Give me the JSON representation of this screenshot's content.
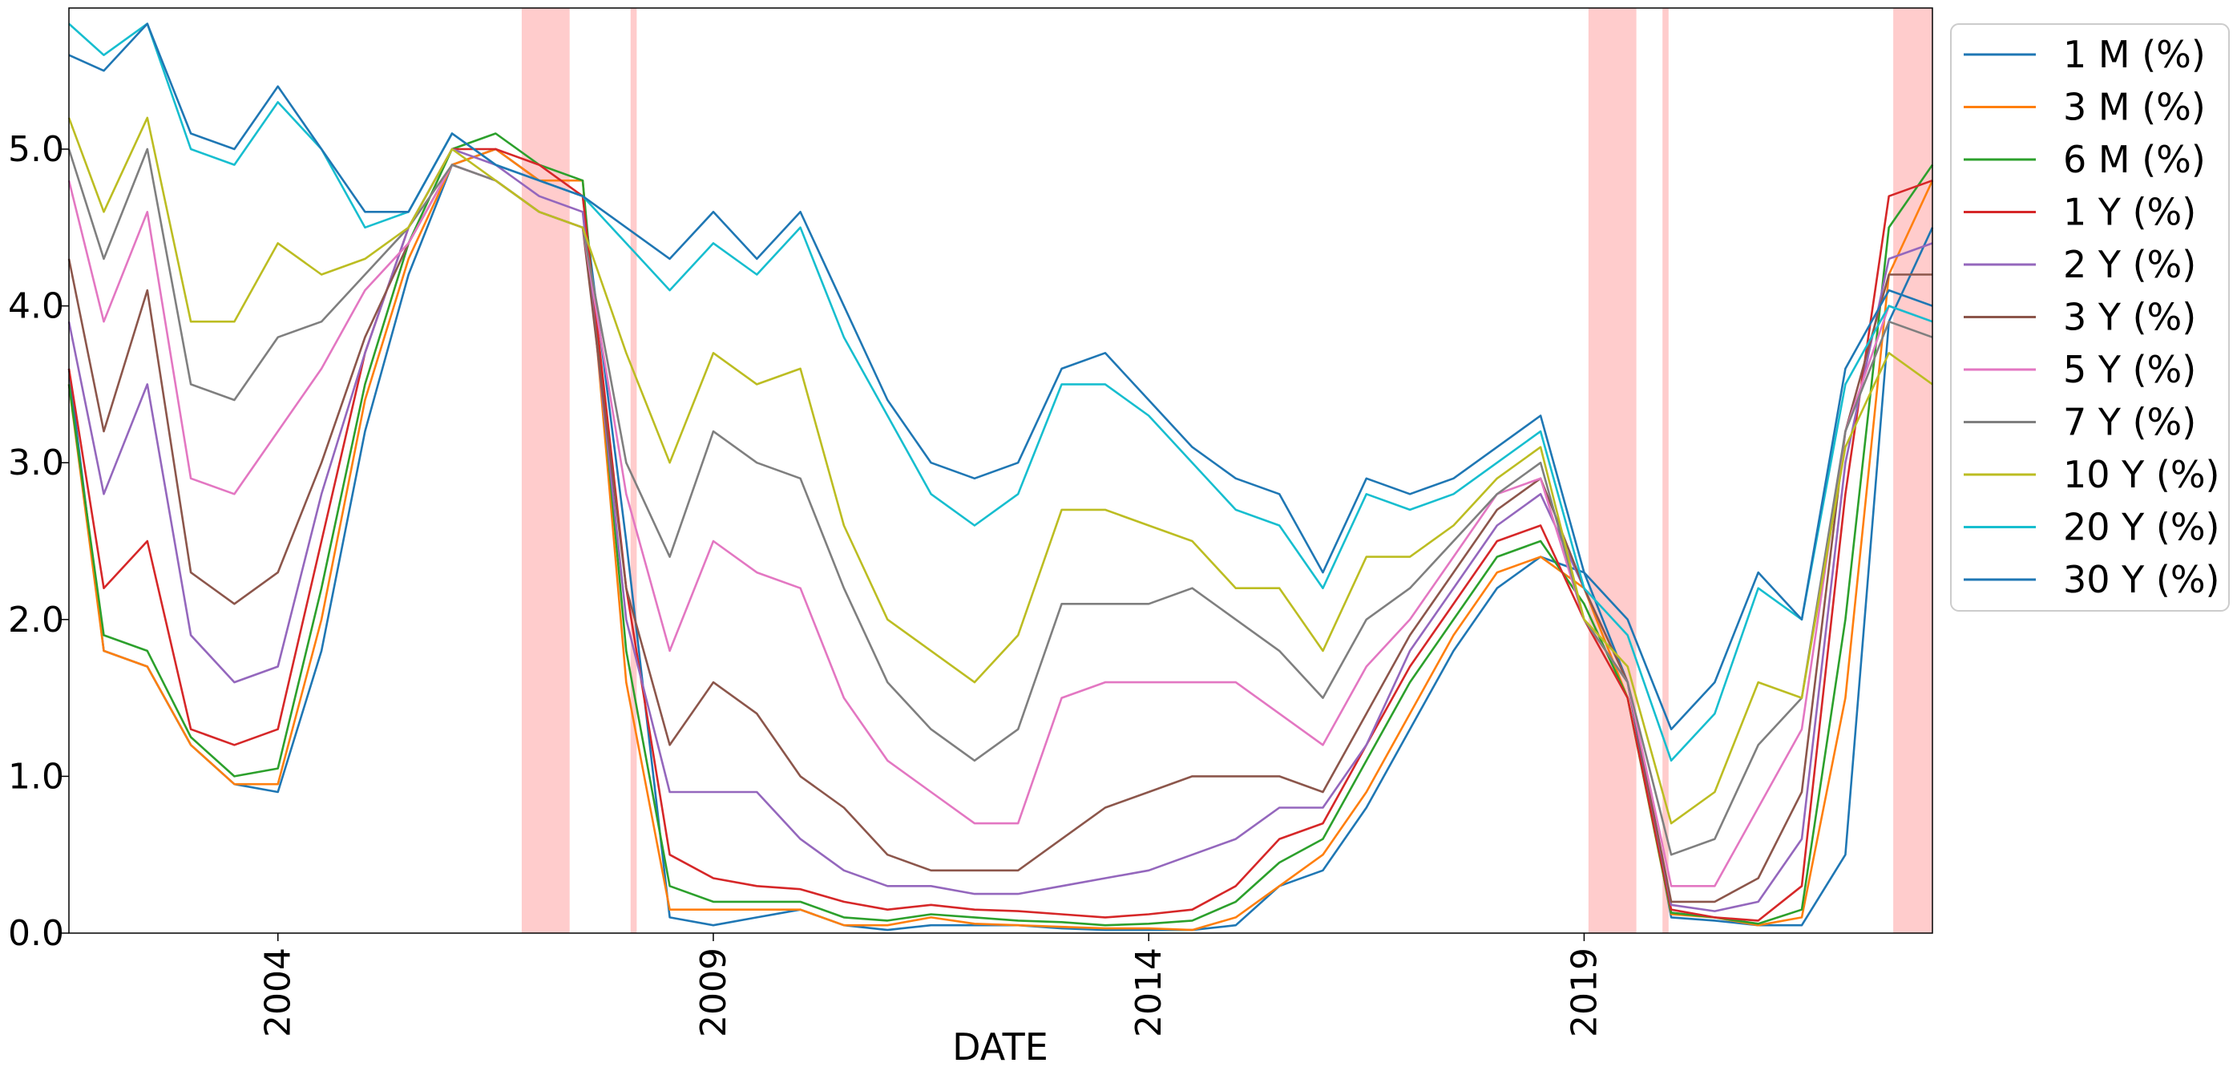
{
  "chart_data": {
    "type": "line",
    "title": "",
    "xlabel": "DATE",
    "ylabel": "",
    "xlim": [
      2001.6,
      2023.0
    ],
    "ylim": [
      0,
      5.9
    ],
    "x_ticks": [
      2004,
      2009,
      2014,
      2019
    ],
    "x_tick_labels": [
      "2004",
      "2009",
      "2014",
      "2019"
    ],
    "y_ticks": [
      0,
      1,
      2,
      3,
      4,
      5
    ],
    "y_tick_labels": [
      "0.0",
      "1.0",
      "2.0",
      "3.0",
      "4.0",
      "5.0"
    ],
    "grid": false,
    "legend_position": "upper right, outside plot",
    "shaded_periods": [
      [
        2006.8,
        2007.35
      ],
      [
        2008.05,
        2008.12
      ],
      [
        2019.05,
        2019.6
      ],
      [
        2019.9,
        2019.97
      ],
      [
        2022.55,
        2023.0
      ]
    ],
    "shade_color": "#ffcccc",
    "x": [
      2001.6,
      2002.0,
      2002.5,
      2003.0,
      2003.5,
      2004.0,
      2004.5,
      2005.0,
      2005.5,
      2006.0,
      2006.5,
      2007.0,
      2007.5,
      2008.0,
      2008.5,
      2009.0,
      2009.5,
      2010.0,
      2010.5,
      2011.0,
      2011.5,
      2012.0,
      2012.5,
      2013.0,
      2013.5,
      2014.0,
      2014.5,
      2015.0,
      2015.5,
      2016.0,
      2016.5,
      2017.0,
      2017.5,
      2018.0,
      2018.5,
      2019.0,
      2019.5,
      2020.0,
      2020.5,
      2021.0,
      2021.5,
      2022.0,
      2022.5,
      2023.0
    ],
    "series": [
      {
        "name": "1 M (%)",
        "color": "#1f77b4",
        "values": [
          3.6,
          1.8,
          1.7,
          1.2,
          0.95,
          0.9,
          1.8,
          3.2,
          4.2,
          4.9,
          5.0,
          4.8,
          4.7,
          2.5,
          0.1,
          0.05,
          0.1,
          0.15,
          0.05,
          0.02,
          0.05,
          0.05,
          0.05,
          0.03,
          0.02,
          0.02,
          0.02,
          0.05,
          0.3,
          0.4,
          0.8,
          1.3,
          1.8,
          2.2,
          2.4,
          2.3,
          1.6,
          0.1,
          0.08,
          0.05,
          0.05,
          0.5,
          3.9,
          4.5
        ]
      },
      {
        "name": "3 M (%)",
        "color": "#ff7f0e",
        "values": [
          3.5,
          1.8,
          1.7,
          1.2,
          0.95,
          0.95,
          2.0,
          3.4,
          4.3,
          4.9,
          5.0,
          4.8,
          4.8,
          1.6,
          0.15,
          0.15,
          0.15,
          0.15,
          0.05,
          0.05,
          0.1,
          0.06,
          0.05,
          0.04,
          0.03,
          0.03,
          0.02,
          0.1,
          0.3,
          0.5,
          0.9,
          1.4,
          1.9,
          2.3,
          2.4,
          2.2,
          1.5,
          0.12,
          0.1,
          0.05,
          0.1,
          1.5,
          4.2,
          4.8
        ]
      },
      {
        "name": "6 M (%)",
        "color": "#2ca02c",
        "values": [
          3.5,
          1.9,
          1.8,
          1.25,
          1.0,
          1.05,
          2.2,
          3.5,
          4.4,
          5.0,
          5.1,
          4.9,
          4.8,
          1.8,
          0.3,
          0.2,
          0.2,
          0.2,
          0.1,
          0.08,
          0.12,
          0.1,
          0.08,
          0.07,
          0.05,
          0.06,
          0.08,
          0.2,
          0.45,
          0.6,
          1.1,
          1.6,
          2.0,
          2.4,
          2.5,
          2.1,
          1.5,
          0.13,
          0.1,
          0.06,
          0.15,
          2.0,
          4.5,
          4.9
        ]
      },
      {
        "name": "1 Y (%)",
        "color": "#d62728",
        "values": [
          3.6,
          2.2,
          2.5,
          1.3,
          1.2,
          1.3,
          2.5,
          3.7,
          4.5,
          5.0,
          5.0,
          4.9,
          4.7,
          2.2,
          0.5,
          0.35,
          0.3,
          0.28,
          0.2,
          0.15,
          0.18,
          0.15,
          0.14,
          0.12,
          0.1,
          0.12,
          0.15,
          0.3,
          0.6,
          0.7,
          1.2,
          1.7,
          2.1,
          2.5,
          2.6,
          2.0,
          1.5,
          0.15,
          0.1,
          0.08,
          0.3,
          2.8,
          4.7,
          4.8
        ]
      },
      {
        "name": "2 Y (%)",
        "color": "#9467bd",
        "values": [
          3.9,
          2.8,
          3.5,
          1.9,
          1.6,
          1.7,
          2.8,
          3.7,
          4.5,
          5.0,
          4.9,
          4.7,
          4.6,
          2.0,
          0.9,
          0.9,
          0.9,
          0.6,
          0.4,
          0.3,
          0.3,
          0.25,
          0.25,
          0.3,
          0.35,
          0.4,
          0.5,
          0.6,
          0.8,
          0.8,
          1.2,
          1.8,
          2.2,
          2.6,
          2.8,
          2.2,
          1.6,
          0.18,
          0.14,
          0.2,
          0.6,
          3.0,
          4.3,
          4.4
        ]
      },
      {
        "name": "3 Y (%)",
        "color": "#8c564b",
        "values": [
          4.3,
          3.2,
          4.1,
          2.3,
          2.1,
          2.3,
          3.0,
          3.8,
          4.4,
          4.9,
          4.8,
          4.6,
          4.5,
          2.2,
          1.2,
          1.6,
          1.4,
          1.0,
          0.8,
          0.5,
          0.4,
          0.4,
          0.4,
          0.6,
          0.8,
          0.9,
          1.0,
          1.0,
          1.0,
          0.9,
          1.4,
          1.9,
          2.3,
          2.7,
          2.9,
          2.2,
          1.6,
          0.2,
          0.2,
          0.35,
          0.9,
          3.2,
          4.2,
          4.2
        ]
      },
      {
        "name": "5 Y (%)",
        "color": "#e377c2",
        "values": [
          4.8,
          3.9,
          4.6,
          2.9,
          2.8,
          3.2,
          3.6,
          4.1,
          4.4,
          4.9,
          4.8,
          4.6,
          4.5,
          2.8,
          1.8,
          2.5,
          2.3,
          2.2,
          1.5,
          1.1,
          0.9,
          0.7,
          0.7,
          1.5,
          1.6,
          1.6,
          1.6,
          1.6,
          1.4,
          1.2,
          1.7,
          2.0,
          2.4,
          2.8,
          2.9,
          2.0,
          1.6,
          0.3,
          0.3,
          0.8,
          1.3,
          3.2,
          4.0,
          3.9
        ]
      },
      {
        "name": "7 Y (%)",
        "color": "#7f7f7f",
        "values": [
          5.0,
          4.3,
          5.0,
          3.5,
          3.4,
          3.8,
          3.9,
          4.2,
          4.5,
          4.9,
          4.8,
          4.6,
          4.5,
          3.0,
          2.4,
          3.2,
          3.0,
          2.9,
          2.2,
          1.6,
          1.3,
          1.1,
          1.3,
          2.1,
          2.1,
          2.1,
          2.2,
          2.0,
          1.8,
          1.5,
          2.0,
          2.2,
          2.5,
          2.8,
          3.0,
          2.0,
          1.6,
          0.5,
          0.6,
          1.2,
          1.5,
          3.2,
          3.9,
          3.8
        ]
      },
      {
        "name": "10 Y (%)",
        "color": "#bcbd22",
        "values": [
          5.2,
          4.6,
          5.2,
          3.9,
          3.9,
          4.4,
          4.2,
          4.3,
          4.5,
          5.0,
          4.8,
          4.6,
          4.5,
          3.7,
          3.0,
          3.7,
          3.5,
          3.6,
          2.6,
          2.0,
          1.8,
          1.6,
          1.9,
          2.7,
          2.7,
          2.6,
          2.5,
          2.2,
          2.2,
          1.8,
          2.4,
          2.4,
          2.6,
          2.9,
          3.1,
          2.0,
          1.7,
          0.7,
          0.9,
          1.6,
          1.5,
          3.1,
          3.7,
          3.5
        ]
      },
      {
        "name": "20 Y (%)",
        "color": "#17becf",
        "values": [
          5.8,
          5.6,
          5.8,
          5.0,
          4.9,
          5.3,
          5.0,
          4.5,
          4.6,
          5.1,
          4.9,
          4.8,
          4.7,
          4.4,
          4.1,
          4.4,
          4.2,
          4.5,
          3.8,
          3.3,
          2.8,
          2.6,
          2.8,
          3.5,
          3.5,
          3.3,
          3.0,
          2.7,
          2.6,
          2.2,
          2.8,
          2.7,
          2.8,
          3.0,
          3.2,
          2.2,
          1.9,
          1.1,
          1.4,
          2.2,
          2.0,
          3.5,
          4.0,
          3.9
        ]
      },
      {
        "name": "30 Y (%)",
        "color": "#1f77b4",
        "values": [
          5.6,
          5.5,
          5.8,
          5.1,
          5.0,
          5.4,
          5.0,
          4.6,
          4.6,
          5.1,
          4.9,
          4.8,
          4.7,
          4.5,
          4.3,
          4.6,
          4.3,
          4.6,
          4.0,
          3.4,
          3.0,
          2.9,
          3.0,
          3.6,
          3.7,
          3.4,
          3.1,
          2.9,
          2.8,
          2.3,
          2.9,
          2.8,
          2.9,
          3.1,
          3.3,
          2.3,
          2.0,
          1.3,
          1.6,
          2.3,
          2.0,
          3.6,
          4.1,
          4.0
        ]
      }
    ]
  }
}
